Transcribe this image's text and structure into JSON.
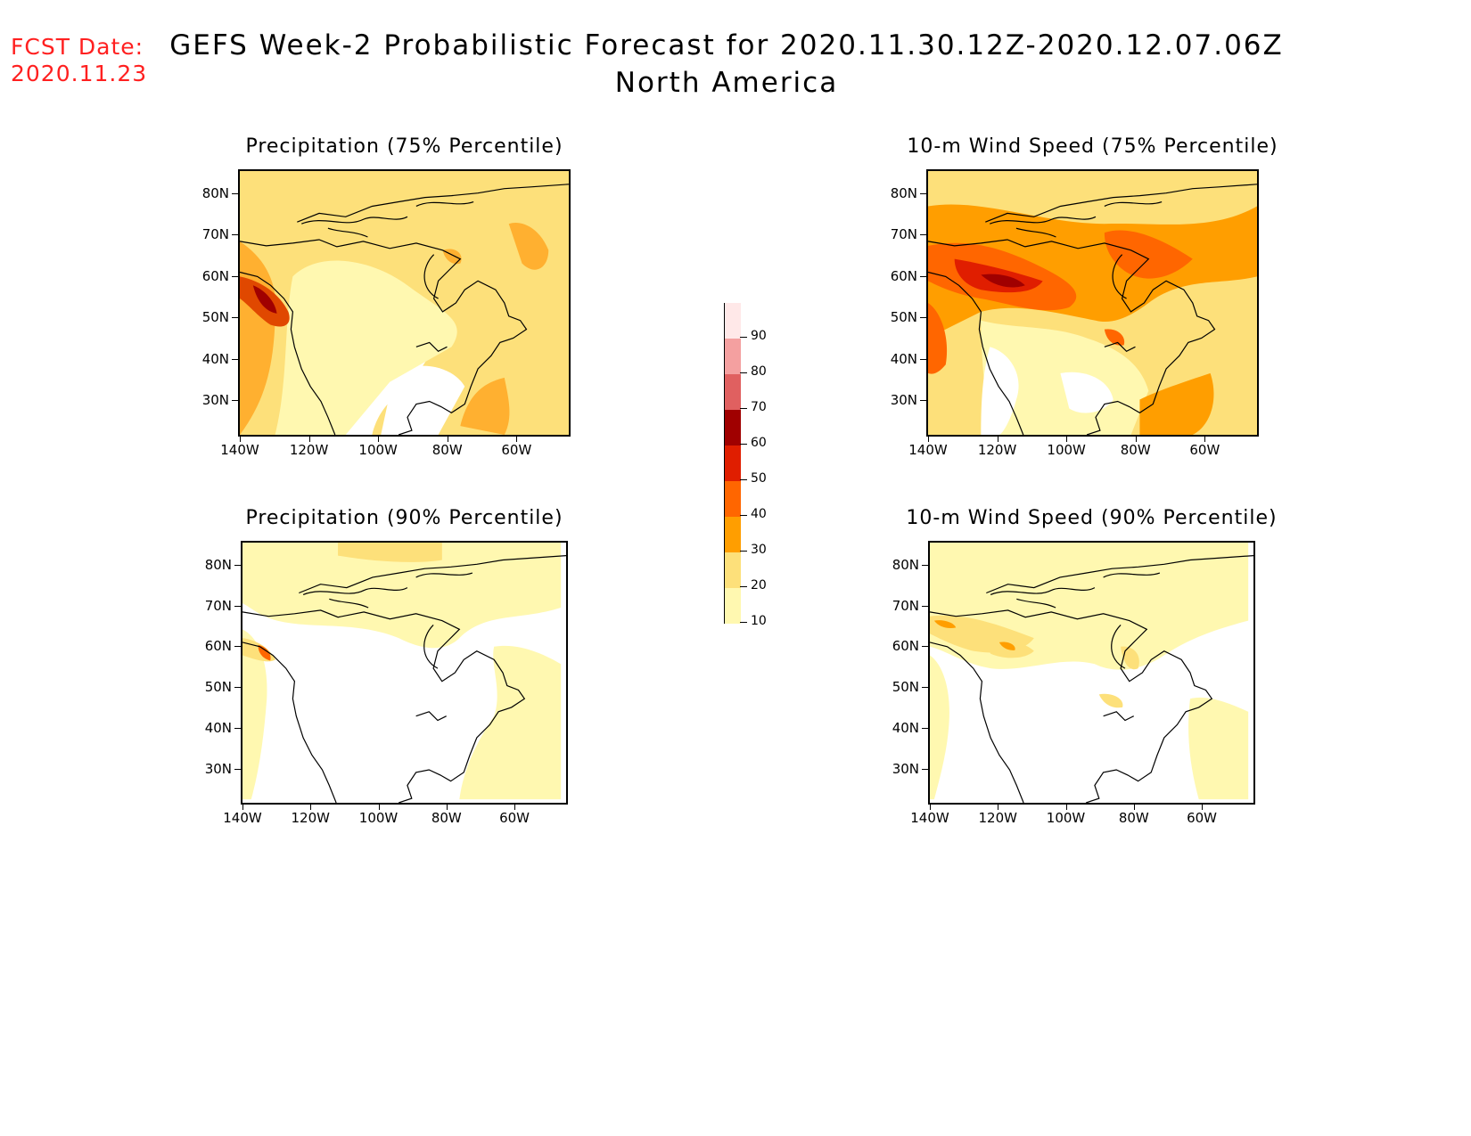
{
  "header": {
    "fcst_label": "FCST Date:",
    "fcst_date": "2020.11.23",
    "title_line1": "GEFS Week-2 Probabilistic Forecast for 2020.11.30.12Z-2020.12.07.06Z",
    "title_line2": "North America"
  },
  "panels": [
    {
      "title": "Precipitation (75% Percentile)"
    },
    {
      "title": "10-m Wind Speed (75% Percentile)"
    },
    {
      "title": "Precipitation (90% Percentile)"
    },
    {
      "title": "10-m Wind Speed (90% Percentile)"
    }
  ],
  "axes": {
    "lat_labels": [
      "80N",
      "70N",
      "60N",
      "50N",
      "40N",
      "30N"
    ],
    "lon_labels": [
      "140W",
      "120W",
      "100W",
      "80W",
      "60W"
    ]
  },
  "colorbar": {
    "levels": [
      "90",
      "80",
      "70",
      "60",
      "50",
      "40",
      "30",
      "20",
      "10"
    ],
    "colors": [
      "#ffe8e8",
      "#f4a0a0",
      "#e06060",
      "#a00000",
      "#e01e00",
      "#ff6600",
      "#ff9e00",
      "#fde07a",
      "#fff8b0"
    ]
  }
}
